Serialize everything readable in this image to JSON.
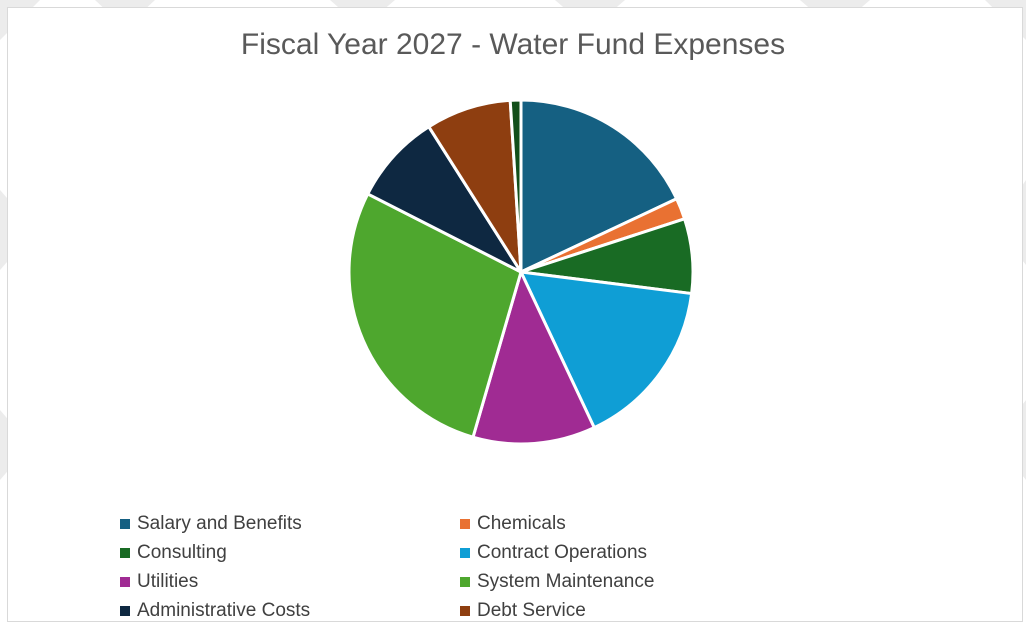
{
  "chart_data": {
    "type": "pie",
    "title": "Fiscal Year 2027 - Water Fund Expenses",
    "legend_position": "bottom",
    "slices": [
      {
        "label": "Salary and Benefits",
        "value": 18.0,
        "color": "#156082"
      },
      {
        "label": "Chemicals",
        "value": 2.0,
        "color": "#E97132"
      },
      {
        "label": "Consulting",
        "value": 7.0,
        "color": "#196B24"
      },
      {
        "label": "Contract Operations",
        "value": 16.0,
        "color": "#0F9ED5"
      },
      {
        "label": "Utilities",
        "value": 11.5,
        "color": "#A02B93"
      },
      {
        "label": "System Maintenance",
        "value": 28.0,
        "color": "#4EA72E"
      },
      {
        "label": "Administrative Costs",
        "value": 8.5,
        "color": "#0E2841"
      },
      {
        "label": "Debt Service",
        "value": 8.0,
        "color": "#8E3E10"
      },
      {
        "label": "",
        "value": 1.0,
        "color": "#124F1A"
      }
    ]
  }
}
